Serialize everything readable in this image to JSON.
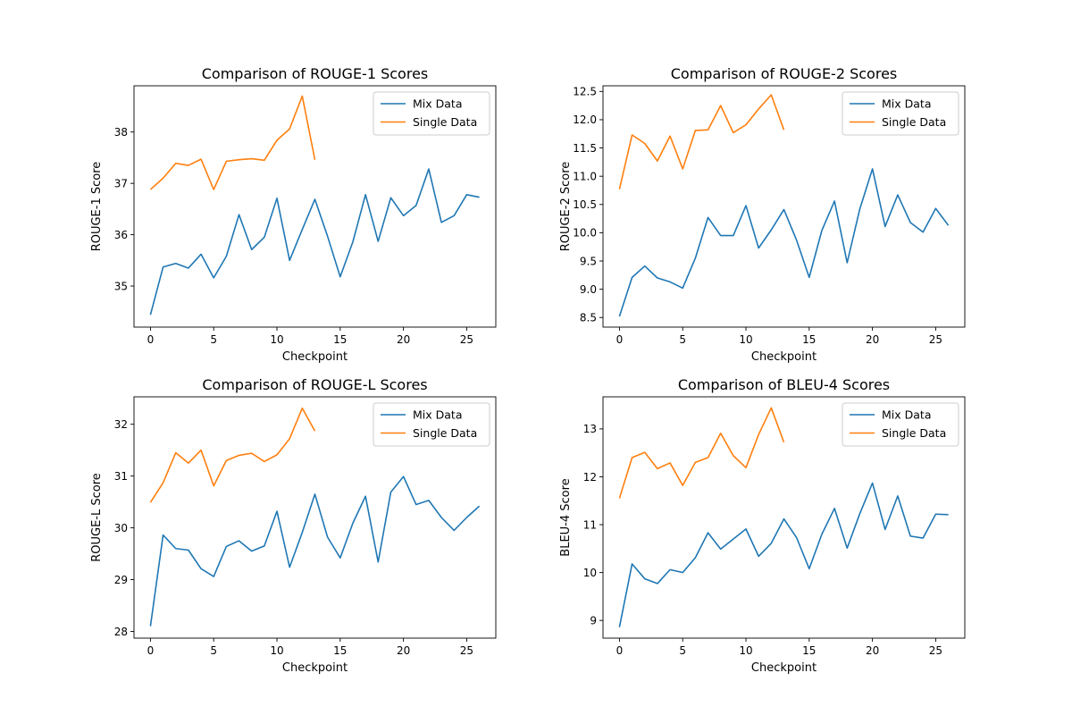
{
  "chart_data": [
    {
      "type": "line",
      "title": "Comparison of ROUGE-1 Scores",
      "xlabel": "Checkpoint",
      "ylabel": "ROUGE-1 Score",
      "xlim": [
        -1.3,
        27.3
      ],
      "ylim": [
        34.2,
        38.9
      ],
      "xticks": [
        0,
        5,
        10,
        15,
        20,
        25
      ],
      "yticks": [
        35,
        36,
        37,
        38
      ],
      "grid": false,
      "legend": "top-right",
      "series": [
        {
          "name": "Mix Data",
          "color": "#1f77b4",
          "x": [
            0,
            1,
            2,
            3,
            4,
            5,
            6,
            7,
            8,
            9,
            10,
            11,
            12,
            13,
            14,
            15,
            16,
            17,
            18,
            19,
            20,
            21,
            22,
            23,
            24,
            25,
            26
          ],
          "y": [
            34.44,
            35.37,
            35.44,
            35.35,
            35.62,
            35.16,
            35.58,
            36.39,
            35.71,
            35.95,
            36.71,
            35.5,
            36.1,
            36.69,
            35.97,
            35.18,
            35.86,
            36.78,
            35.87,
            36.72,
            36.37,
            36.57,
            37.28,
            36.24,
            36.37,
            36.78,
            36.73
          ]
        },
        {
          "name": "Single Data",
          "color": "#ff7f0e",
          "x": [
            0,
            1,
            2,
            3,
            4,
            5,
            6,
            7,
            8,
            9,
            10,
            11,
            12,
            13
          ],
          "y": [
            36.88,
            37.1,
            37.39,
            37.35,
            37.47,
            36.88,
            37.43,
            37.46,
            37.48,
            37.45,
            37.84,
            38.06,
            38.7,
            37.46
          ]
        }
      ]
    },
    {
      "type": "line",
      "title": "Comparison of ROUGE-2 Scores",
      "xlabel": "Checkpoint",
      "ylabel": "ROUGE-2 Score",
      "xlim": [
        -1.3,
        27.3
      ],
      "ylim": [
        8.33,
        12.6
      ],
      "xticks": [
        0,
        5,
        10,
        15,
        20,
        25
      ],
      "yticks": [
        8.5,
        9.0,
        9.5,
        10.0,
        10.5,
        11.0,
        11.5,
        12.0,
        12.5
      ],
      "ytick_labels": [
        "8.5",
        "9.0",
        "9.5",
        "10.0",
        "10.5",
        "11.0",
        "11.5",
        "12.0",
        "12.5"
      ],
      "grid": false,
      "legend": "top-right",
      "series": [
        {
          "name": "Mix Data",
          "color": "#1f77b4",
          "x": [
            0,
            1,
            2,
            3,
            4,
            5,
            6,
            7,
            8,
            9,
            10,
            11,
            12,
            13,
            14,
            15,
            16,
            17,
            18,
            19,
            20,
            21,
            22,
            23,
            24,
            25,
            26
          ],
          "y": [
            8.52,
            9.21,
            9.41,
            9.2,
            9.13,
            9.02,
            9.55,
            10.27,
            9.95,
            9.95,
            10.48,
            9.73,
            10.05,
            10.41,
            9.87,
            9.21,
            10.04,
            10.56,
            9.47,
            10.42,
            11.13,
            10.11,
            10.67,
            10.18,
            10.01,
            10.43,
            10.13
          ]
        },
        {
          "name": "Single Data",
          "color": "#ff7f0e",
          "x": [
            0,
            1,
            2,
            3,
            4,
            5,
            6,
            7,
            8,
            9,
            10,
            11,
            12,
            13
          ],
          "y": [
            10.77,
            11.73,
            11.58,
            11.27,
            11.71,
            11.13,
            11.81,
            11.82,
            12.25,
            11.77,
            11.91,
            12.19,
            12.44,
            11.82
          ]
        }
      ]
    },
    {
      "type": "line",
      "title": "Comparison of ROUGE-L Scores",
      "xlabel": "Checkpoint",
      "ylabel": "ROUGE-L Score",
      "xlim": [
        -1.3,
        27.3
      ],
      "ylim": [
        27.87,
        32.53
      ],
      "xticks": [
        0,
        5,
        10,
        15,
        20,
        25
      ],
      "yticks": [
        28,
        29,
        30,
        31,
        32
      ],
      "grid": false,
      "legend": "top-right",
      "series": [
        {
          "name": "Mix Data",
          "color": "#1f77b4",
          "x": [
            0,
            1,
            2,
            3,
            4,
            5,
            6,
            7,
            8,
            9,
            10,
            11,
            12,
            13,
            14,
            15,
            16,
            17,
            18,
            19,
            20,
            21,
            22,
            23,
            24,
            25,
            26
          ],
          "y": [
            28.1,
            29.86,
            29.6,
            29.57,
            29.21,
            29.06,
            29.64,
            29.75,
            29.55,
            29.65,
            30.32,
            29.24,
            29.91,
            30.65,
            29.82,
            29.42,
            30.09,
            30.61,
            29.34,
            30.69,
            30.99,
            30.45,
            30.53,
            30.2,
            29.95,
            30.2,
            30.42
          ]
        },
        {
          "name": "Single Data",
          "color": "#ff7f0e",
          "x": [
            0,
            1,
            2,
            3,
            4,
            5,
            6,
            7,
            8,
            9,
            10,
            11,
            12,
            13
          ],
          "y": [
            30.49,
            30.87,
            31.45,
            31.25,
            31.5,
            30.81,
            31.3,
            31.4,
            31.44,
            31.28,
            31.41,
            31.72,
            32.31,
            31.87
          ]
        }
      ]
    },
    {
      "type": "line",
      "title": "Comparison of BLEU-4 Scores",
      "xlabel": "Checkpoint",
      "ylabel": "BLEU-4 Score",
      "xlim": [
        -1.3,
        27.3
      ],
      "ylim": [
        8.63,
        13.67
      ],
      "xticks": [
        0,
        5,
        10,
        15,
        20,
        25
      ],
      "yticks": [
        9,
        10,
        11,
        12,
        13
      ],
      "grid": false,
      "legend": "top-right",
      "series": [
        {
          "name": "Mix Data",
          "color": "#1f77b4",
          "x": [
            0,
            1,
            2,
            3,
            4,
            5,
            6,
            7,
            8,
            9,
            10,
            11,
            12,
            13,
            14,
            15,
            16,
            17,
            18,
            19,
            20,
            21,
            22,
            23,
            24,
            25,
            26
          ],
          "y": [
            8.86,
            10.18,
            9.87,
            9.77,
            10.06,
            10.0,
            10.31,
            10.83,
            10.49,
            10.7,
            10.91,
            10.34,
            10.61,
            11.12,
            10.73,
            10.08,
            10.8,
            11.34,
            10.51,
            11.23,
            11.87,
            10.9,
            11.6,
            10.76,
            10.72,
            11.22,
            11.21
          ]
        },
        {
          "name": "Single Data",
          "color": "#ff7f0e",
          "x": [
            0,
            1,
            2,
            3,
            4,
            5,
            6,
            7,
            8,
            9,
            10,
            11,
            12,
            13
          ],
          "y": [
            11.55,
            12.4,
            12.51,
            12.17,
            12.29,
            11.82,
            12.3,
            12.4,
            12.91,
            12.44,
            12.19,
            12.88,
            13.44,
            12.72
          ]
        }
      ]
    }
  ]
}
